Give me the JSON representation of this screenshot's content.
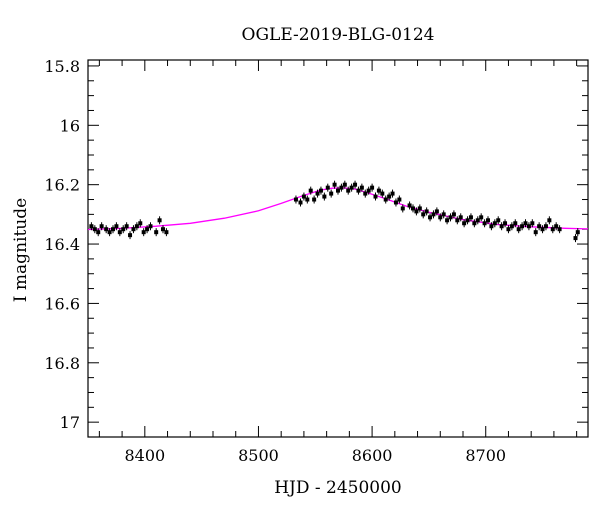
{
  "chart_data": {
    "type": "scatter",
    "title": "OGLE-2019-BLG-0124",
    "xlabel": "HJD - 2450000",
    "ylabel": "I magnitude",
    "xlim": [
      8350,
      8790
    ],
    "ylim": [
      17.05,
      15.78
    ],
    "y_inverted": true,
    "xticks": [
      8400,
      8500,
      8600,
      8700
    ],
    "xtick_labels": [
      "8400",
      "8500",
      "8600",
      "8700"
    ],
    "yticks": [
      15.8,
      16.0,
      16.2,
      16.4,
      16.6,
      16.8,
      17.0
    ],
    "ytick_labels": [
      "15.8",
      "16",
      "16.2",
      "16.4",
      "16.6",
      "16.8",
      "17"
    ],
    "grid": false,
    "colors": {
      "data": "#000000",
      "model": "#ff00ff"
    },
    "series": [
      {
        "kind": "points",
        "color": "#000000",
        "x": [
          8353,
          8356,
          8359,
          8362,
          8366,
          8369,
          8372,
          8375,
          8378,
          8381,
          8384,
          8387,
          8390,
          8393,
          8396,
          8399,
          8402,
          8405,
          8410,
          8413,
          8416,
          8419,
          8533,
          8537,
          8540,
          8543,
          8546,
          8549,
          8552,
          8555,
          8558,
          8561,
          8564,
          8567,
          8570,
          8573,
          8576,
          8579,
          8582,
          8585,
          8588,
          8591,
          8594,
          8597,
          8600,
          8603,
          8606,
          8609,
          8612,
          8615,
          8618,
          8621,
          8624,
          8627,
          8633,
          8636,
          8639,
          8642,
          8645,
          8648,
          8651,
          8654,
          8657,
          8660,
          8663,
          8666,
          8669,
          8672,
          8675,
          8678,
          8681,
          8684,
          8687,
          8690,
          8693,
          8696,
          8699,
          8702,
          8705,
          8708,
          8711,
          8714,
          8717,
          8720,
          8723,
          8726,
          8729,
          8732,
          8735,
          8738,
          8741,
          8744,
          8747,
          8750,
          8753,
          8756,
          8759,
          8762,
          8765,
          8779,
          8781
        ],
        "y": [
          16.34,
          16.35,
          16.36,
          16.34,
          16.35,
          16.36,
          16.35,
          16.34,
          16.36,
          16.35,
          16.34,
          16.37,
          16.35,
          16.34,
          16.33,
          16.36,
          16.35,
          16.34,
          16.36,
          16.32,
          16.35,
          16.36,
          16.25,
          16.26,
          16.24,
          16.25,
          16.22,
          16.25,
          16.23,
          16.22,
          16.24,
          16.21,
          16.23,
          16.2,
          16.22,
          16.21,
          16.2,
          16.22,
          16.21,
          16.2,
          16.22,
          16.21,
          16.23,
          16.22,
          16.21,
          16.24,
          16.22,
          16.23,
          16.25,
          16.24,
          16.23,
          16.26,
          16.25,
          16.28,
          16.27,
          16.28,
          16.29,
          16.28,
          16.3,
          16.29,
          16.31,
          16.3,
          16.29,
          16.31,
          16.3,
          16.32,
          16.31,
          16.3,
          16.32,
          16.31,
          16.33,
          16.32,
          16.31,
          16.33,
          16.32,
          16.31,
          16.33,
          16.32,
          16.34,
          16.33,
          16.32,
          16.34,
          16.33,
          16.35,
          16.34,
          16.33,
          16.35,
          16.34,
          16.33,
          16.34,
          16.33,
          16.36,
          16.34,
          16.35,
          16.34,
          16.32,
          16.35,
          16.34,
          16.35,
          16.38,
          16.36
        ]
      },
      {
        "kind": "model",
        "color": "#ff00ff",
        "x": [
          8350,
          8380,
          8410,
          8440,
          8470,
          8500,
          8520,
          8540,
          8555,
          8565,
          8575,
          8585,
          8595,
          8610,
          8630,
          8650,
          8680,
          8710,
          8740,
          8770,
          8790
        ],
        "y": [
          16.351,
          16.347,
          16.34,
          16.33,
          16.313,
          16.288,
          16.263,
          16.236,
          16.218,
          16.212,
          16.211,
          16.215,
          16.226,
          16.245,
          16.272,
          16.293,
          16.318,
          16.334,
          16.342,
          16.347,
          16.349
        ]
      }
    ]
  }
}
